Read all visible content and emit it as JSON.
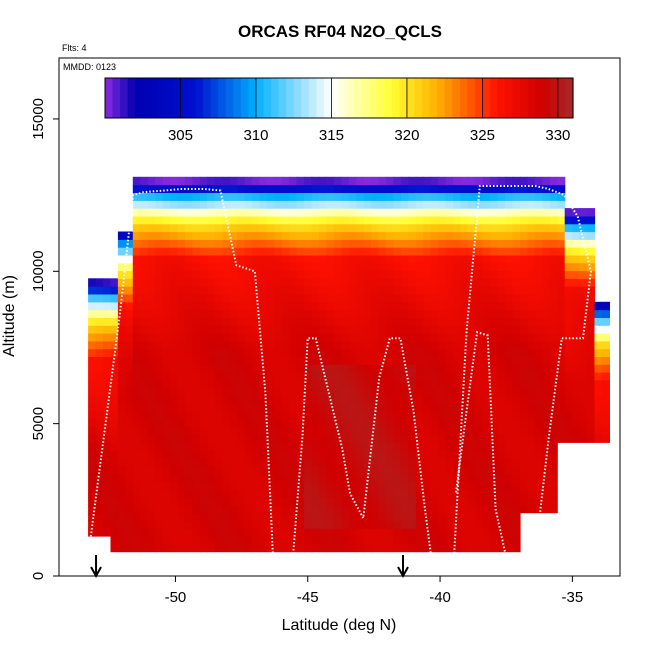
{
  "chart_data": {
    "type": "heatmap",
    "title": "ORCAS RF04 N2O_QCLS",
    "annotations": {
      "flights": "Flts: 4",
      "date": "MMDD: 0123"
    },
    "xlabel": "Latitude (deg N)",
    "ylabel": "Altitude (m)",
    "xlim": [
      -54.4,
      -33.2
    ],
    "ylim": [
      0,
      17000
    ],
    "x_ticks": [
      -50,
      -45,
      -40,
      -35
    ],
    "x_tick_labels": [
      "-50",
      "-45",
      "-40",
      "-35"
    ],
    "y_ticks": [
      0,
      5000,
      10000,
      15000
    ],
    "y_tick_labels": [
      "0",
      "5000",
      "10000",
      "15000"
    ],
    "colorbar": {
      "range": [
        300,
        331
      ],
      "ticks": [
        305,
        310,
        315,
        320,
        325,
        330
      ],
      "tick_labels": [
        "305",
        "310",
        "315",
        "320",
        "325",
        "330"
      ],
      "stops": [
        {
          "value": 300,
          "color": "#8a2be2"
        },
        {
          "value": 302,
          "color": "#0000b0"
        },
        {
          "value": 306,
          "color": "#0010d0"
        },
        {
          "value": 310,
          "color": "#00b0ff"
        },
        {
          "value": 315,
          "color": "#ffffff"
        },
        {
          "value": 319,
          "color": "#ffff30"
        },
        {
          "value": 322,
          "color": "#ffb000"
        },
        {
          "value": 326,
          "color": "#ff1000"
        },
        {
          "value": 329,
          "color": "#d00000"
        },
        {
          "value": 331,
          "color": "#a52a2a"
        }
      ]
    },
    "field": {
      "lat_range": [
        -53.3,
        -33.6
      ],
      "alt_range": [
        800,
        13100
      ],
      "description_values_ppb": "mostly 326-329 in troposphere, 300-318 near tropopause"
    },
    "flight_track": [
      [
        -53.2,
        1300
      ],
      [
        -52.1,
        8600
      ],
      [
        -51.6,
        12500
      ],
      [
        -51.2,
        12600
      ],
      [
        -50.4,
        12650
      ],
      [
        -49.8,
        12700
      ],
      [
        -48.9,
        12700
      ],
      [
        -48.3,
        12650
      ],
      [
        -47.7,
        10200
      ],
      [
        -47.0,
        10000
      ],
      [
        -46.6,
        6000
      ],
      [
        -46.3,
        400
      ],
      [
        -46.0,
        200
      ],
      [
        -45.6,
        200
      ],
      [
        -45.2,
        4600
      ],
      [
        -45.0,
        7800
      ],
      [
        -44.7,
        7800
      ],
      [
        -43.7,
        4200
      ],
      [
        -43.4,
        2700
      ],
      [
        -42.9,
        1900
      ],
      [
        -42.3,
        6500
      ],
      [
        -41.9,
        7800
      ],
      [
        -41.5,
        7800
      ],
      [
        -41.0,
        5400
      ],
      [
        -40.6,
        2400
      ],
      [
        -40.3,
        400
      ],
      [
        -40.0,
        200
      ],
      [
        -39.5,
        200
      ],
      [
        -39.0,
        8000
      ],
      [
        -38.5,
        12800
      ],
      [
        -37.8,
        12800
      ],
      [
        -37.1,
        12800
      ],
      [
        -36.4,
        12800
      ],
      [
        -35.9,
        12700
      ],
      [
        -35.3,
        12500
      ],
      [
        -34.8,
        11800
      ],
      [
        -34.3,
        10000
      ],
      [
        -34.6,
        7800
      ],
      [
        -35.4,
        7800
      ],
      [
        -35.9,
        4500
      ],
      [
        -36.3,
        1500
      ],
      [
        -36.6,
        300
      ],
      [
        -36.9,
        200
      ],
      [
        -37.4,
        200
      ],
      [
        -37.9,
        2200
      ],
      [
        -38.2,
        7900
      ],
      [
        -38.6,
        8000
      ],
      [
        -39.0,
        5400
      ],
      [
        -39.4,
        2700
      ]
    ],
    "markers": [
      {
        "lat": -53.0,
        "label": "arrow"
      },
      {
        "lat": -41.4,
        "label": "arrow"
      }
    ]
  }
}
